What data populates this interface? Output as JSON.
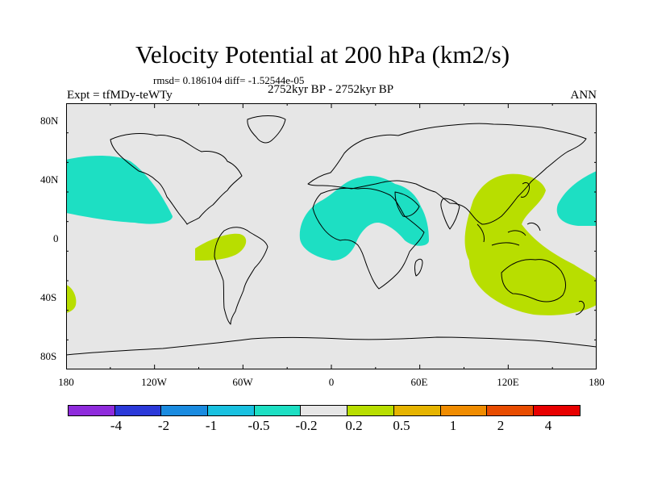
{
  "title": "Velocity Potential at 200 hPa (km2/s)",
  "stats_text": "rmsd= 0.186104  diff= -1.52544e-05",
  "experiment": "Expt = tfMDy-teWTy",
  "period": "2752kyr BP - 2752kyr BP",
  "season": "ANN",
  "x_ticks": [
    "180",
    "120W",
    "60W",
    "0",
    "60E",
    "120E",
    "180"
  ],
  "y_ticks": [
    "80N",
    "40N",
    "0",
    "40S",
    "80S"
  ],
  "colorbar": {
    "colors": [
      "#8f2bdc",
      "#2b39d9",
      "#1a8be0",
      "#19c1e0",
      "#1ddfc3",
      "#e6e6e6",
      "#b8de00",
      "#e6b400",
      "#f08c00",
      "#e84c00",
      "#e80000"
    ],
    "labels": [
      "-4",
      "-2",
      "-1",
      "-0.5",
      "-0.2",
      "0.2",
      "0.5",
      "1",
      "2",
      "4"
    ]
  },
  "colors": {
    "background": "#e6e6e6",
    "negative": "#1ddfc3",
    "positive": "#b8de00"
  }
}
